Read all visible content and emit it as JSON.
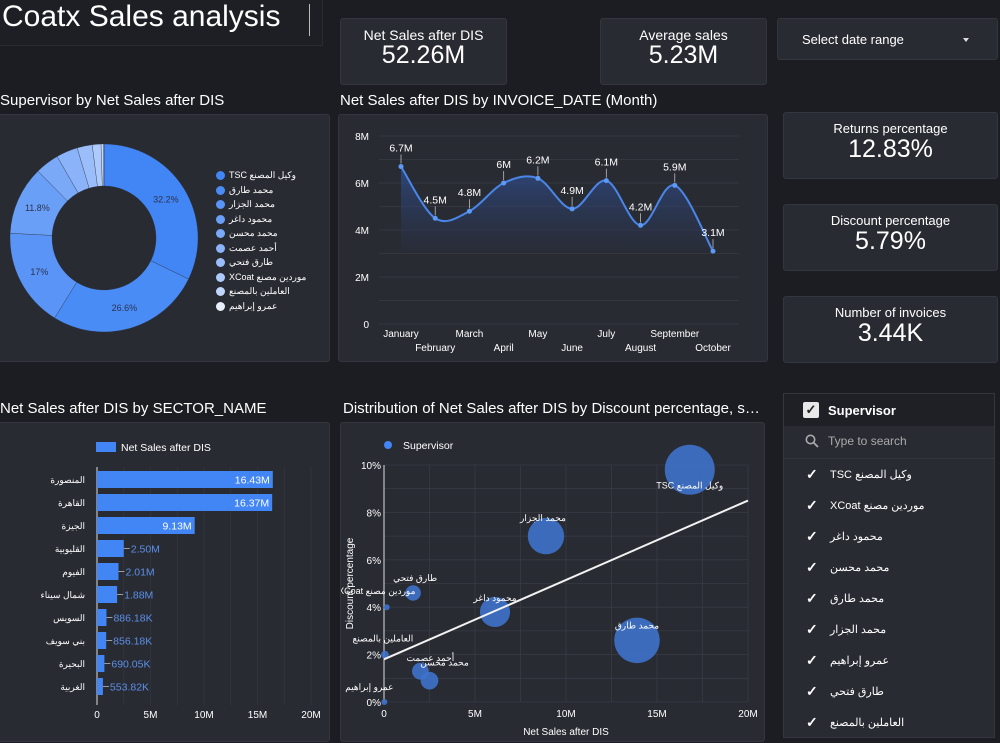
{
  "header": {
    "title": "Coatx Sales analysis",
    "date_range": {
      "label": "Select date range",
      "icon": "caret-down-icon"
    }
  },
  "kpis": {
    "net_sales": {
      "label": "Net Sales after DIS",
      "value": "52.26M"
    },
    "average_sales": {
      "label": "Average sales",
      "value": "5.23M"
    },
    "returns_pct": {
      "label": "Returns percentage",
      "value": "12.83%"
    },
    "discount_pct": {
      "label": "Discount percentage",
      "value": "5.79%"
    },
    "invoices": {
      "label": "Number of invoices",
      "value": "3.44K"
    }
  },
  "sections": {
    "donut_title": "Supervisor by Net Sales after DIS",
    "line_title": "Net Sales after DIS by INVOICE_DATE (Month)",
    "bar_title": "Net Sales after DIS by SECTOR_NAME",
    "scatter_title": "Distribution of Net Sales after DIS by Discount percentage, s…"
  },
  "filter": {
    "title": "Supervisor",
    "search_placeholder": "Type to search",
    "items": [
      "TSC وكيل المصنع",
      "XCoat موردين مصنع",
      "محمود داغر",
      "محمد محسن",
      "محمد طارق",
      "محمد الجزار",
      "عمرو إبراهيم",
      "طارق فتحي",
      "العاملين بالمصنع"
    ]
  },
  "colors": {
    "accent": "#4285f4",
    "background": "#1c1d22",
    "card": "#292b33",
    "donut_palette": [
      "#4285f4",
      "#4a8cf5",
      "#5994f6",
      "#6a9ff7",
      "#7aa9f8",
      "#8ab3f9",
      "#9bbefa",
      "#accafb",
      "#c0d6fc",
      "#e8f0fe"
    ]
  },
  "chart_data": [
    {
      "type": "pie",
      "title": "Supervisor by Net Sales after DIS",
      "donut": true,
      "legend_position": "right",
      "labels": [
        "TSC وكيل المصنع",
        "محمد طارق",
        "محمد الجزار",
        "محمود داغر",
        "محمد محسن",
        "أحمد عصمت",
        "طارق فتحي",
        "XCoat موردين مصنع",
        "العاملين بالمصنع",
        "عمرو إبراهيم"
      ],
      "values": [
        32.2,
        26.6,
        17.0,
        11.8,
        4.1,
        3.7,
        2.6,
        1.5,
        0.4,
        0.1
      ],
      "data_labels": [
        "32.2%",
        "26.6%",
        "17%",
        "11.8%",
        "",
        "",
        "",
        "",
        "",
        ""
      ]
    },
    {
      "type": "area",
      "title": "Net Sales after DIS by INVOICE_DATE (Month)",
      "categories": [
        "January",
        "February",
        "March",
        "April",
        "May",
        "June",
        "July",
        "August",
        "September",
        "October"
      ],
      "values": [
        6.7,
        4.5,
        4.8,
        6.0,
        6.2,
        4.9,
        6.1,
        4.2,
        5.9,
        3.1
      ],
      "data_labels": [
        "6.7M",
        "4.5M",
        "4.8M",
        "6M",
        "6.2M",
        "4.9M",
        "6.1M",
        "4.2M",
        "5.9M",
        "3.1M"
      ],
      "unit": "M",
      "ylim": [
        0,
        8
      ],
      "yticks": [
        "0",
        "2M",
        "4M",
        "6M",
        "8M"
      ],
      "grid": true
    },
    {
      "type": "bar",
      "orientation": "horizontal",
      "title": "Net Sales after DIS by SECTOR_NAME",
      "legend": [
        "Net Sales after DIS"
      ],
      "legend_position": "top",
      "categories": [
        "المنصورة",
        "القاهرة",
        "الجيزة",
        "القليوبية",
        "الفيوم",
        "شمال سيناء",
        "السويس",
        "بني سويف",
        "البحيرة",
        "الغربية"
      ],
      "values": [
        16.43,
        16.37,
        9.13,
        2.5,
        2.01,
        1.88,
        0.88618,
        0.85618,
        0.69005,
        0.55382
      ],
      "data_labels": [
        "16.43M",
        "16.37M",
        "9.13M",
        "2.50M",
        "2.01M",
        "1.88M",
        "886.18K",
        "856.18K",
        "690.05K",
        "553.82K"
      ],
      "unit": "M",
      "xlim": [
        0,
        20
      ],
      "xticks": [
        "0",
        "5M",
        "10M",
        "15M",
        "20M"
      ],
      "grid": true
    },
    {
      "type": "scatter",
      "title": "Distribution of Net Sales after DIS by Discount percentage, s…",
      "legend": [
        "Supervisor"
      ],
      "legend_position": "top-left",
      "xlabel": "Net Sales after DIS",
      "ylabel": "Discount percentage",
      "xlim": [
        0,
        20
      ],
      "ylim": [
        0,
        10
      ],
      "xticks": [
        "0",
        "5M",
        "10M",
        "15M",
        "20M"
      ],
      "yticks": [
        "0%",
        "2%",
        "4%",
        "6%",
        "8%",
        "10%"
      ],
      "points": [
        {
          "label": "TSC وكيل المصنع",
          "x": 16.8,
          "y": 9.8,
          "size": 16.8
        },
        {
          "label": "محمد الجزار",
          "x": 8.9,
          "y": 7.0,
          "size": 8.9
        },
        {
          "label": "محمد طارق",
          "x": 13.9,
          "y": 2.6,
          "size": 13.9
        },
        {
          "label": "محمود داغر",
          "x": 6.1,
          "y": 3.8,
          "size": 6.1
        },
        {
          "label": "طارق فتحي",
          "x": 1.6,
          "y": 4.6,
          "size": 1.6
        },
        {
          "label": "XCoat موردين مصنع",
          "x": 0.15,
          "y": 4.0,
          "size": 0.15
        },
        {
          "label": "العاملين بالمصنع",
          "x": 0.05,
          "y": 2.0,
          "size": 0.4
        },
        {
          "label": "أحمد عصمت",
          "x": 2.0,
          "y": 1.3,
          "size": 1.9
        },
        {
          "label": "محمد محسن",
          "x": 2.5,
          "y": 0.9,
          "size": 2.1
        },
        {
          "label": "عمرو إبراهيم",
          "x": 0.02,
          "y": 0.0,
          "size": 0.02
        }
      ],
      "trendline": {
        "x": [
          0,
          20
        ],
        "y": [
          1.8,
          8.5
        ]
      },
      "grid": true
    }
  ]
}
